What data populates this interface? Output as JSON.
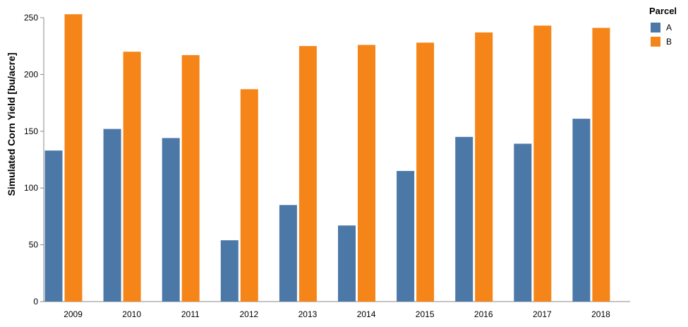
{
  "chart_data": {
    "type": "bar",
    "title": "",
    "xlabel": "",
    "ylabel": "Simulated Corn Yield [bu/acre]",
    "categories": [
      "2009",
      "2010",
      "2011",
      "2012",
      "2013",
      "2014",
      "2015",
      "2016",
      "2017",
      "2018"
    ],
    "series": [
      {
        "name": "A",
        "color": "#4c78a8",
        "values": [
          133,
          152,
          144,
          54,
          85,
          67,
          115,
          145,
          139,
          161
        ]
      },
      {
        "name": "B",
        "color": "#f58518",
        "values": [
          253,
          220,
          217,
          187,
          225,
          226,
          228,
          237,
          243,
          241
        ]
      }
    ],
    "ylim": [
      0,
      250
    ],
    "yticks": [
      0,
      50,
      100,
      150,
      200,
      250
    ],
    "grid": false,
    "legend": {
      "title": "Parcel",
      "position": "top-right"
    }
  }
}
